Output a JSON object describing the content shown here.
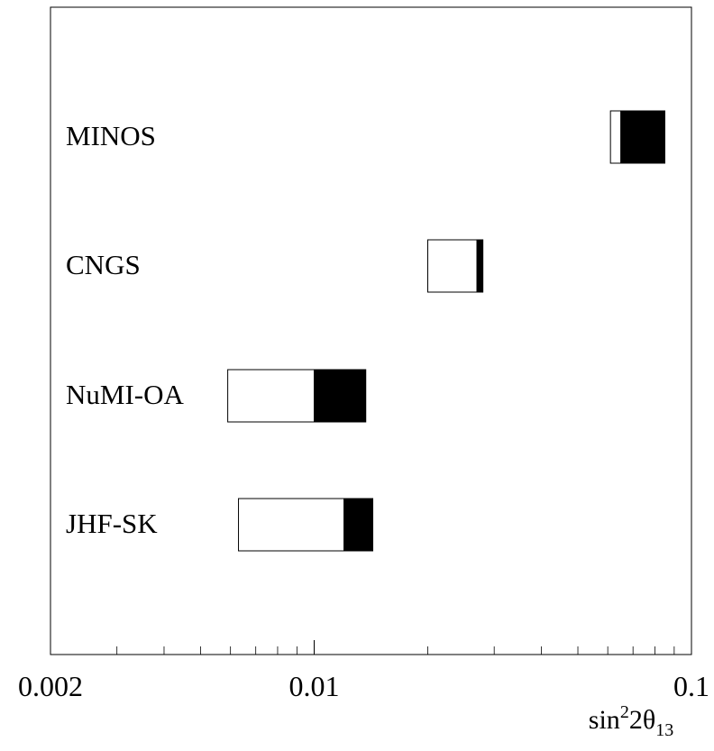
{
  "chart_data": {
    "type": "bar",
    "subtype": "horizontal-range",
    "title": "",
    "xlabel": {
      "base": "sin",
      "sup": "2",
      "mid": "2θ",
      "sub": "13"
    },
    "x_scale": "log",
    "xlim": [
      0.002,
      0.1
    ],
    "xticks": [
      {
        "value": 0.002,
        "label": "0.002"
      },
      {
        "value": 0.01,
        "label": "0.01"
      },
      {
        "value": 0.1,
        "label": "0.1"
      }
    ],
    "grid": false,
    "experiments": [
      {
        "name": "MINOS",
        "white_range": [
          0.061,
          0.065
        ],
        "black_range": [
          0.065,
          0.085
        ]
      },
      {
        "name": "CNGS",
        "white_range": [
          0.02,
          0.027
        ],
        "black_range": [
          0.027,
          0.028
        ]
      },
      {
        "name": "NuMI-OA",
        "white_range": [
          0.0059,
          0.01
        ],
        "black_range": [
          0.01,
          0.0137
        ]
      },
      {
        "name": "JHF-SK",
        "white_range": [
          0.0063,
          0.012
        ],
        "black_range": [
          0.012,
          0.0143
        ]
      }
    ]
  }
}
